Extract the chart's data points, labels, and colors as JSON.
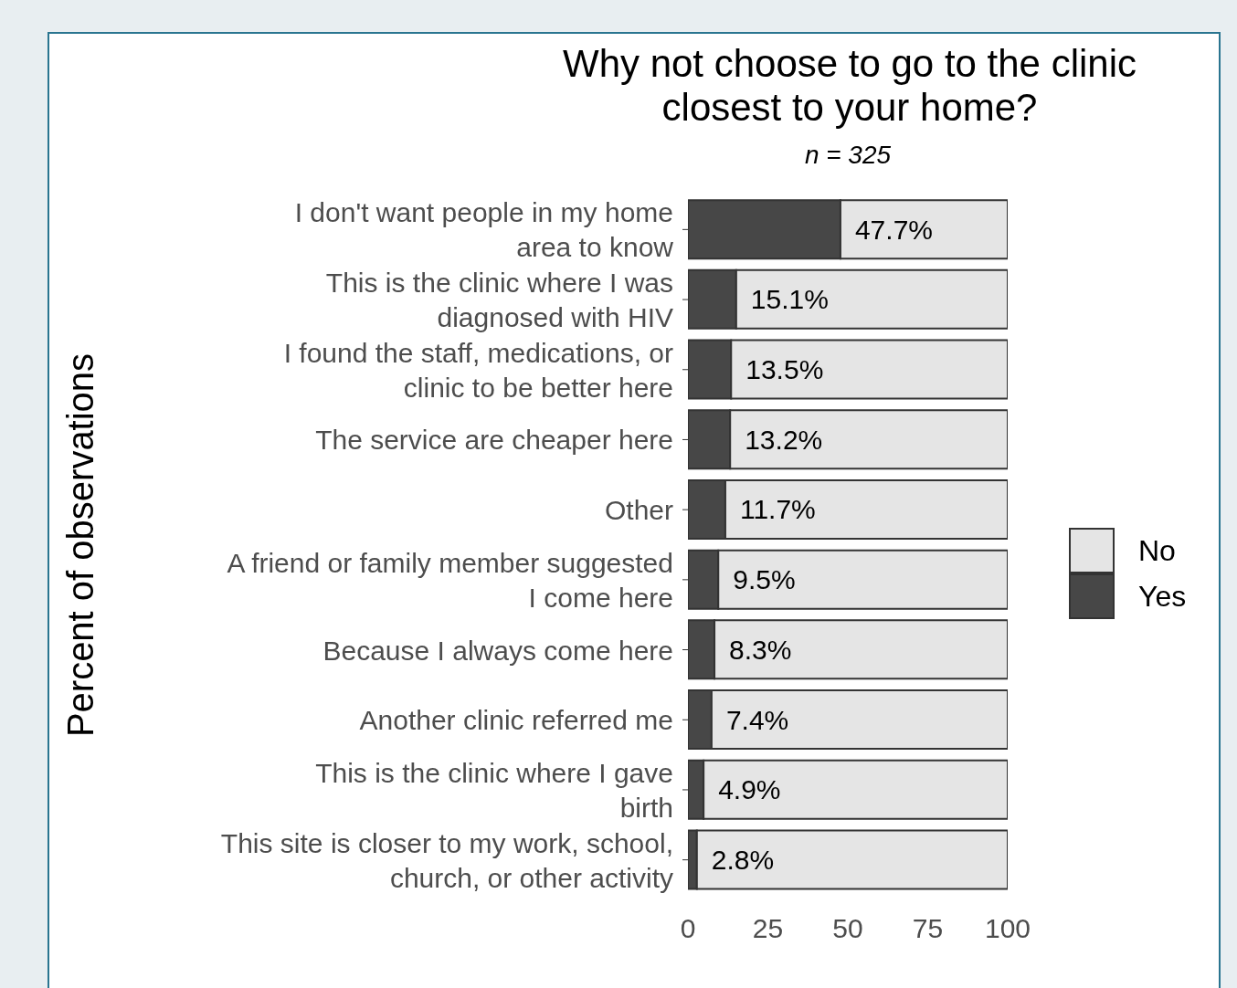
{
  "chart_data": {
    "type": "bar",
    "orientation": "horizontal",
    "stacked": true,
    "title": "Why not choose to go to the clinic\nclosest to your home?",
    "subtitle": "n = 325",
    "ylabel": "Percent of observations",
    "categories": [
      "I don't want people in my home\narea to know",
      "This is the clinic where I was\ndiagnosed with HIV",
      "I found the staff, medications, or\nclinic to be better here",
      "The service are cheaper here",
      "Other",
      "A friend or family member suggested\nI come here",
      "Because I always come here",
      "Another clinic referred me",
      "This is the clinic where I gave\nbirth",
      "This site is closer to my work, school,\nchurch, or other activity"
    ],
    "series": [
      {
        "name": "Yes",
        "color": "#474747",
        "values": [
          47.7,
          15.1,
          13.5,
          13.2,
          11.7,
          9.5,
          8.3,
          7.4,
          4.9,
          2.8
        ],
        "value_labels": [
          "47.7%",
          "15.1%",
          "13.5%",
          "13.2%",
          "11.7%",
          "9.5%",
          "8.3%",
          "7.4%",
          "4.9%",
          "2.8%"
        ]
      },
      {
        "name": "No",
        "color": "#e5e5e5",
        "values": [
          52.3,
          84.9,
          86.5,
          86.8,
          88.3,
          90.5,
          91.7,
          92.6,
          95.1,
          97.2
        ]
      }
    ],
    "xlim": [
      0,
      100
    ],
    "xticks": [
      0,
      25,
      50,
      75,
      100
    ],
    "legend": "right"
  }
}
